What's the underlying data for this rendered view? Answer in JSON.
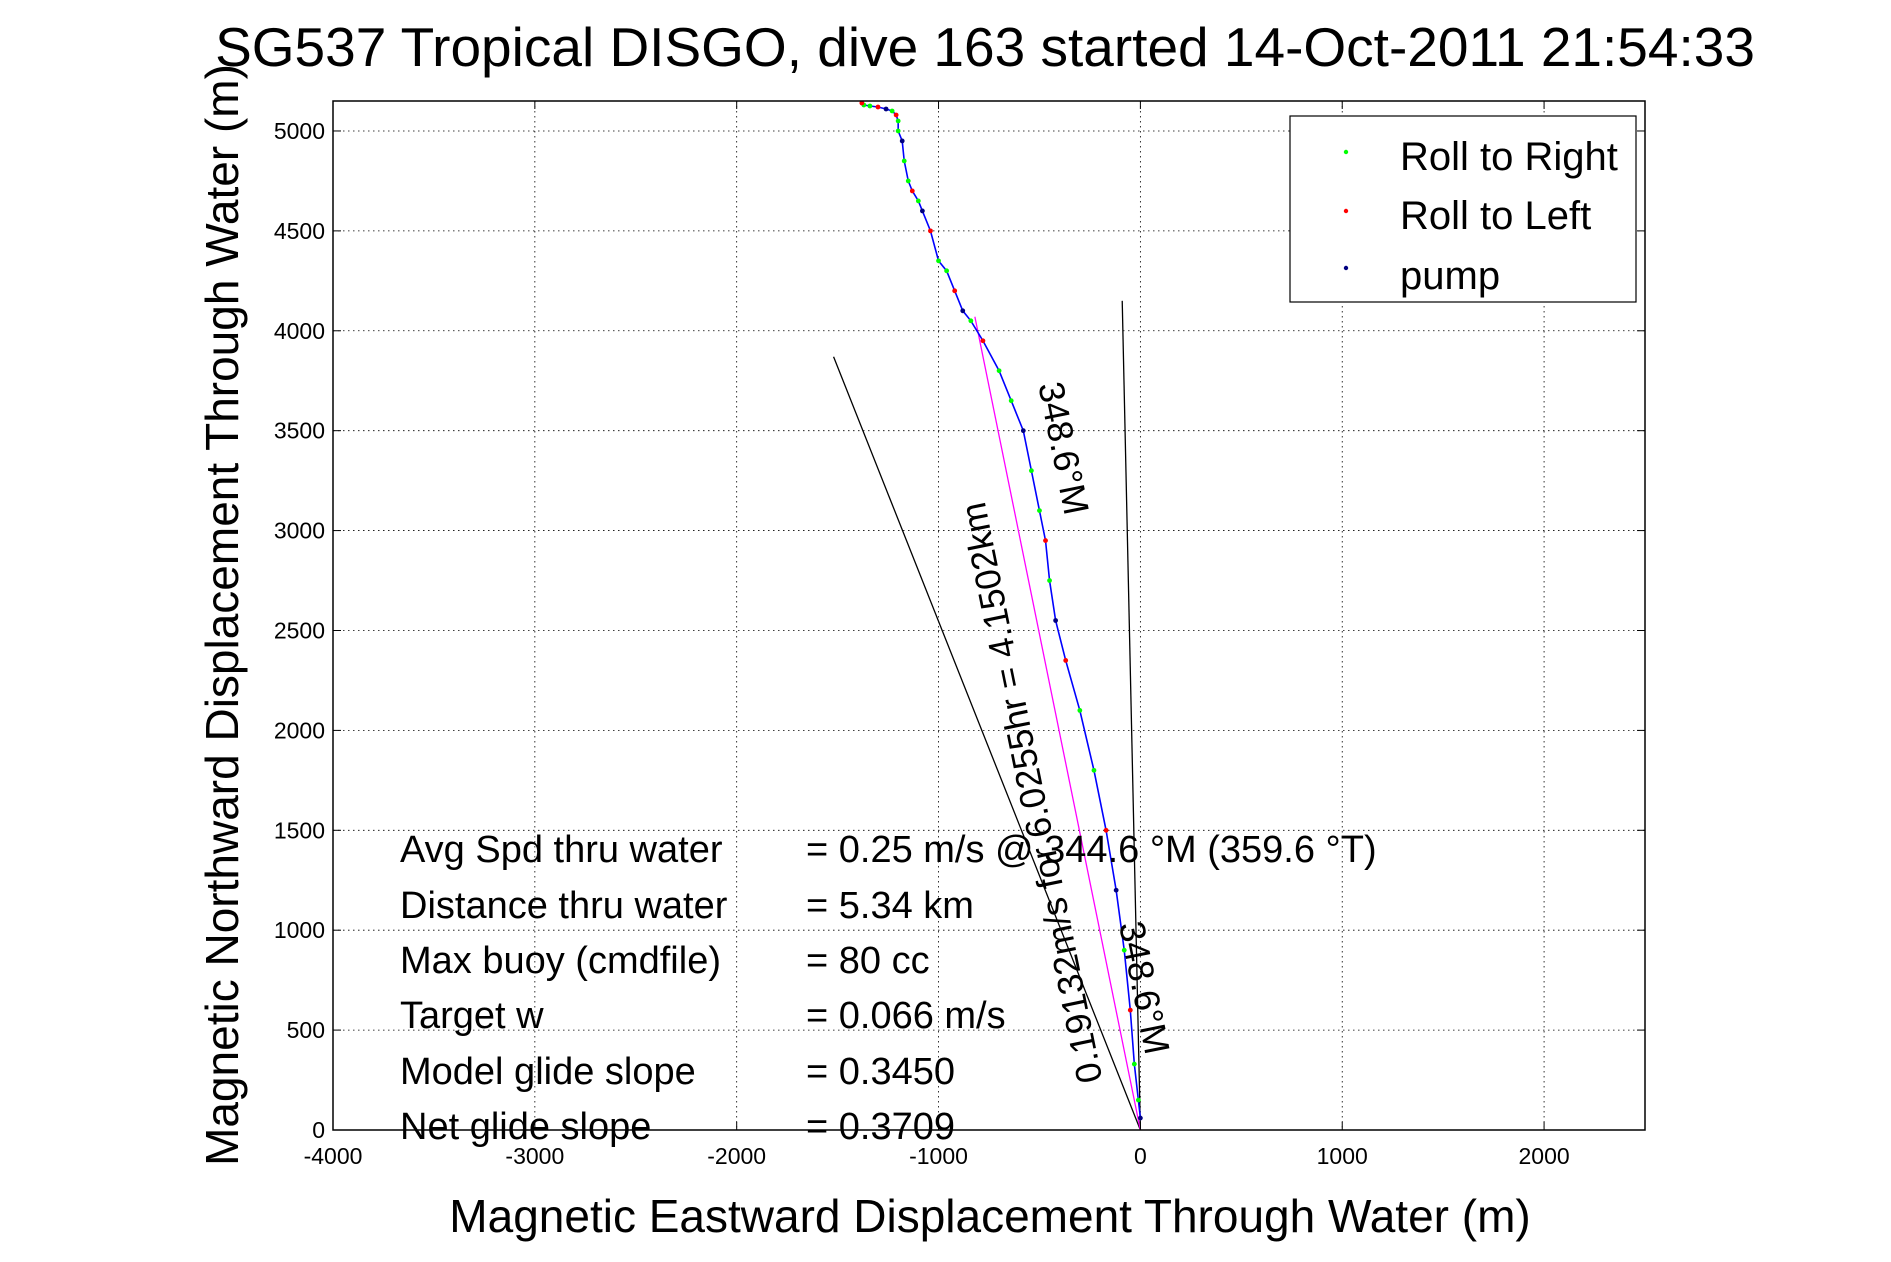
{
  "chart_data": {
    "type": "line",
    "title": "SG537 Tropical DISGO, dive 163 started 14-Oct-2011 21:54:33",
    "xlabel": "Magnetic Eastward Displacement Through Water (m)",
    "ylabel": "Magnetic Northward Displacement Through Water (m)",
    "xlim": [
      -4000,
      2500
    ],
    "ylim": [
      0,
      5150
    ],
    "xticks": [
      -4000,
      -3000,
      -2000,
      -1000,
      0,
      1000,
      2000
    ],
    "yticks": [
      0,
      500,
      1000,
      1500,
      2000,
      2500,
      3000,
      3500,
      4000,
      4500,
      5000
    ],
    "grid": true,
    "legend_position": "top-right",
    "legend": [
      {
        "label": "Roll to Right",
        "color": "#00ff00"
      },
      {
        "label": "Roll to Left",
        "color": "#ff0000"
      },
      {
        "label": "pump",
        "color": "#000080"
      }
    ],
    "track": {
      "color": "#0000ff",
      "x": [
        0,
        -10,
        -30,
        -50,
        -80,
        -120,
        -170,
        -230,
        -300,
        -370,
        -420,
        -450,
        -470,
        -500,
        -540,
        -580,
        -640,
        -700,
        -780,
        -840,
        -880,
        -920,
        -960,
        -1000,
        -1040,
        -1080,
        -1100,
        -1130,
        -1150,
        -1170,
        -1180,
        -1200,
        -1200,
        -1210,
        -1230,
        -1260,
        -1300,
        -1340,
        -1370,
        -1380
      ],
      "y": [
        60,
        150,
        330,
        600,
        900,
        1200,
        1500,
        1800,
        2100,
        2350,
        2550,
        2750,
        2950,
        3100,
        3300,
        3500,
        3650,
        3800,
        3950,
        4050,
        4100,
        4200,
        4300,
        4350,
        4500,
        4600,
        4650,
        4700,
        4750,
        4850,
        4950,
        5000,
        5050,
        5080,
        5100,
        5110,
        5120,
        5125,
        5130,
        5140
      ]
    },
    "lines": [
      {
        "name": "bound-left",
        "color": "#000000",
        "x": [
          0,
          -1520
        ],
        "y": [
          0,
          3870
        ]
      },
      {
        "name": "bound-right",
        "color": "#000000",
        "x": [
          0,
          -90
        ],
        "y": [
          0,
          4150
        ]
      },
      {
        "name": "net-heading",
        "color": "#ff00ff",
        "x": [
          0,
          -820
        ],
        "y": [
          0,
          4070
        ]
      }
    ],
    "stats": [
      {
        "label": "Avg Spd thru water",
        "value": "=  0.25 m/s @ 344.6 °M (359.6 °T)"
      },
      {
        "label": "Distance thru water",
        "value": "=  5.34 km"
      },
      {
        "label": "Max buoy (cmdfile)",
        "value": "= 80 cc"
      },
      {
        "label": "Target w",
        "value": "= 0.066 m/s"
      },
      {
        "label": "Model glide slope",
        "value": "= 0.3450"
      },
      {
        "label": "Net glide slope",
        "value": "= 0.3709"
      }
    ],
    "annotations": [
      {
        "text": "0.19132m/s for 6.0255hr = 4.1502km",
        "x": -480,
        "y": 1700
      },
      {
        "text": "348.6°M",
        "x": -440,
        "y": 3400
      },
      {
        "text": "348.6°M",
        "x": -40,
        "y": 700
      }
    ]
  }
}
